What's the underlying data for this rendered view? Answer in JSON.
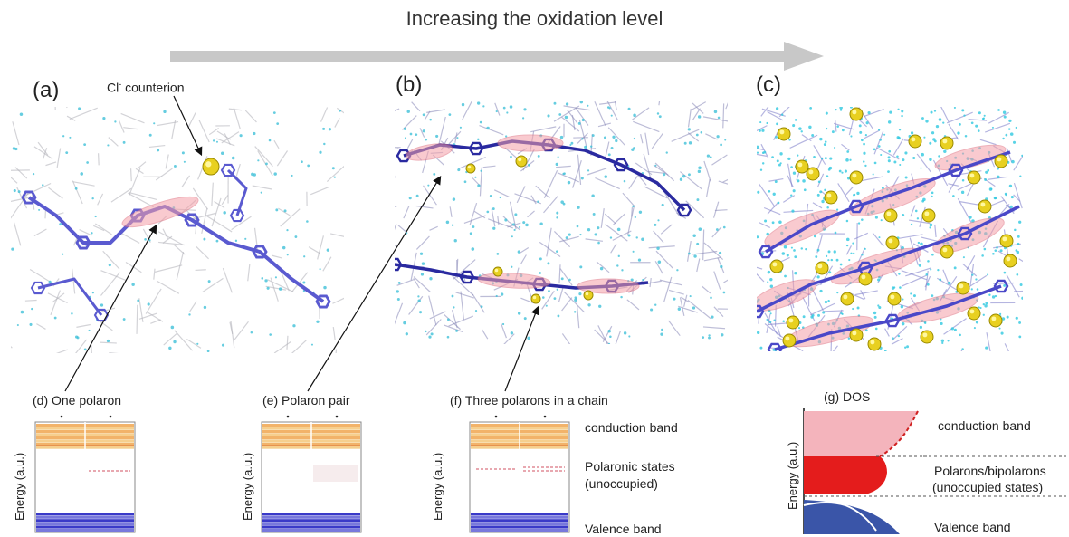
{
  "title": "Increasing the oxidation level",
  "panels": {
    "a": {
      "label": "(a)",
      "annotation_main": "Cl",
      "annotation_sup": "-",
      "annotation_rest": " counterion"
    },
    "b": {
      "label": "(b)"
    },
    "c": {
      "label": "(c)"
    }
  },
  "band_diagrams": {
    "d": {
      "caption": "(d) One polaron",
      "ylabel": "Energy (a.u.)"
    },
    "e": {
      "caption": "(e) Polaron pair",
      "ylabel": "Energy (a.u.)"
    },
    "f": {
      "caption": "(f) Three polarons in a chain",
      "ylabel": "Energy (a.u.)",
      "conduction": "conduction band",
      "polaronic_1": "Polaronic states",
      "polaronic_2": "(unoccupied)",
      "valence": "Valence band"
    },
    "g": {
      "caption": "(g) DOS",
      "ylabel": "Energy (a.u.)",
      "conduction": "conduction band",
      "polarons_1": "Polarons/bipolarons",
      "polarons_2": "(unoccupied states)",
      "valence": "Valence band"
    }
  },
  "colors": {
    "conduction": "#f0a860",
    "valence": "#3a3ac8",
    "polaron": "#e06070",
    "chain": "#5a5ad0",
    "counterion": "#e8d020",
    "water": "#40c0d8"
  }
}
